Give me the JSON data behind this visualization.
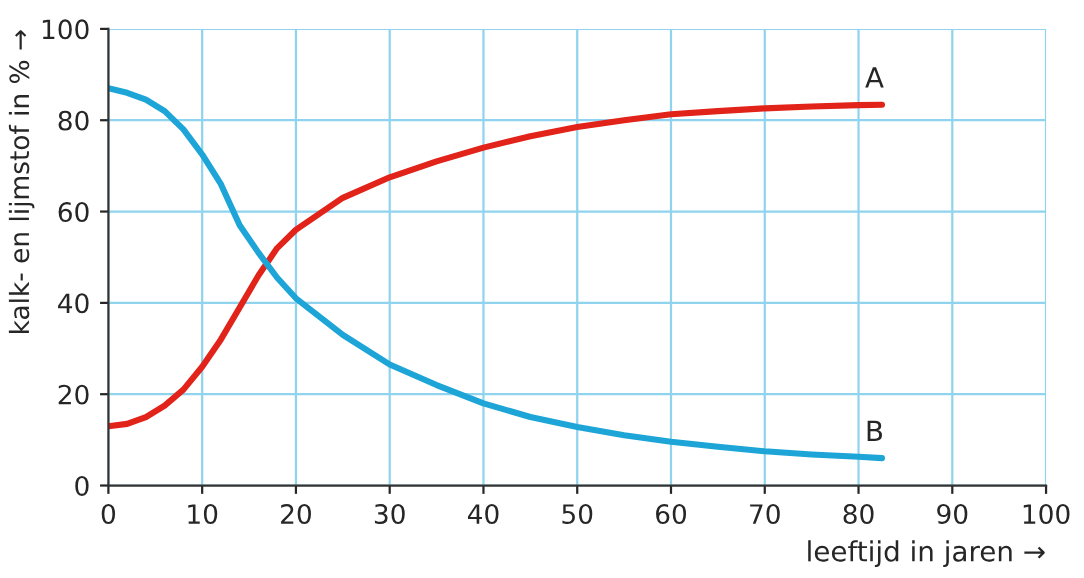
{
  "chart_data": {
    "type": "line",
    "xlabel": "leeftijd in jaren →",
    "ylabel": "kalk- en lijmstof in % →",
    "xlim": [
      0,
      100
    ],
    "xticks": [
      0,
      10,
      20,
      30,
      40,
      50,
      60,
      70,
      80,
      90,
      100
    ],
    "ylim": [
      0,
      100
    ],
    "yticks": [
      0,
      20,
      40,
      60,
      80,
      100
    ],
    "grid": true,
    "legend": false,
    "series": [
      {
        "name": "A",
        "color": "#e2231a",
        "x": [
          0,
          2,
          4,
          6,
          8,
          10,
          12,
          14,
          16,
          18,
          20,
          25,
          30,
          35,
          40,
          45,
          50,
          55,
          60,
          65,
          70,
          75,
          80,
          82.5
        ],
        "values": [
          13,
          13.5,
          15,
          17.5,
          21,
          26,
          32,
          39,
          46,
          52,
          56,
          63,
          67.5,
          71,
          74,
          76.5,
          78.5,
          80,
          81.3,
          82,
          82.6,
          83,
          83.3,
          83.4
        ]
      },
      {
        "name": "B",
        "color": "#1ea5d8",
        "x": [
          0,
          2,
          4,
          6,
          8,
          10,
          12,
          14,
          16,
          18,
          20,
          25,
          30,
          35,
          40,
          45,
          50,
          55,
          60,
          65,
          70,
          75,
          80,
          82.5
        ],
        "values": [
          87,
          86,
          84.5,
          82,
          78,
          72.5,
          66,
          57,
          51,
          45.5,
          41,
          33,
          26.5,
          22,
          18,
          15,
          12.8,
          11,
          9.6,
          8.5,
          7.5,
          6.8,
          6.3,
          6
        ]
      }
    ]
  }
}
